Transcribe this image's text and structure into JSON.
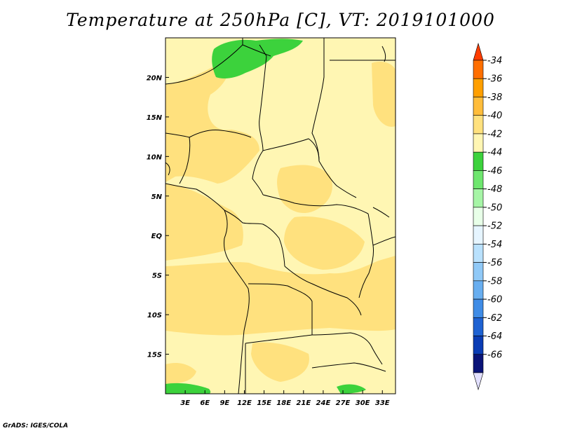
{
  "title": "Temperature at 250hPa [C], VT: 2019101000",
  "credit": "GrADS: IGES/COLA",
  "map": {
    "lon_labels": [
      "3E",
      "6E",
      "9E",
      "12E",
      "15E",
      "18E",
      "21E",
      "24E",
      "27E",
      "30E",
      "33E"
    ],
    "lon_values": [
      3,
      6,
      9,
      12,
      15,
      18,
      21,
      24,
      27,
      30,
      33
    ],
    "lat_labels": [
      "20N",
      "15N",
      "10N",
      "5N",
      "EQ",
      "5S",
      "10S",
      "15S"
    ],
    "lat_values": [
      20,
      15,
      10,
      5,
      0,
      -5,
      -10,
      -15
    ],
    "lon_range": [
      0,
      35
    ],
    "lat_range": [
      -20,
      25
    ],
    "background_color": "#fff6b3"
  },
  "colorbar": {
    "labels": [
      "-34",
      "-36",
      "-38",
      "-40",
      "-42",
      "-44",
      "-46",
      "-48",
      "-50",
      "-52",
      "-54",
      "-56",
      "-58",
      "-60",
      "-62",
      "-64",
      "-66"
    ],
    "colors": [
      "#ff3d00",
      "#ff6f00",
      "#ff9f00",
      "#ffbd3b",
      "#ffe17e",
      "#fff6b3",
      "#3cd23c",
      "#6ee66e",
      "#a6f5a6",
      "#e8ffe8",
      "#e6f5ff",
      "#b9e1fd",
      "#90c9f7",
      "#68aef0",
      "#3f8ce6",
      "#1e62d2",
      "#0a3cb4",
      "#0a1478",
      "#e2e0ff"
    ]
  },
  "chart_data": {
    "type": "heatmap",
    "title": "Temperature at 250hPa [C], VT: 2019101000",
    "x_ticks": [
      "3E",
      "6E",
      "9E",
      "12E",
      "15E",
      "18E",
      "21E",
      "24E",
      "27E",
      "30E",
      "33E"
    ],
    "y_ticks": [
      "20N",
      "15N",
      "10N",
      "5N",
      "EQ",
      "5S",
      "10S",
      "15S"
    ],
    "xlim": [
      0,
      35
    ],
    "ylim": [
      -20,
      25
    ],
    "levels": [
      -66,
      -64,
      -62,
      -60,
      -58,
      -56,
      -54,
      -52,
      -50,
      -48,
      -46,
      -44,
      -42,
      -40,
      -38,
      -36,
      -34
    ],
    "dominant_range": [
      -44,
      -40
    ],
    "colder_patches": "-46 to -44 near 22-25N 8-20E and near 19-20S"
  }
}
